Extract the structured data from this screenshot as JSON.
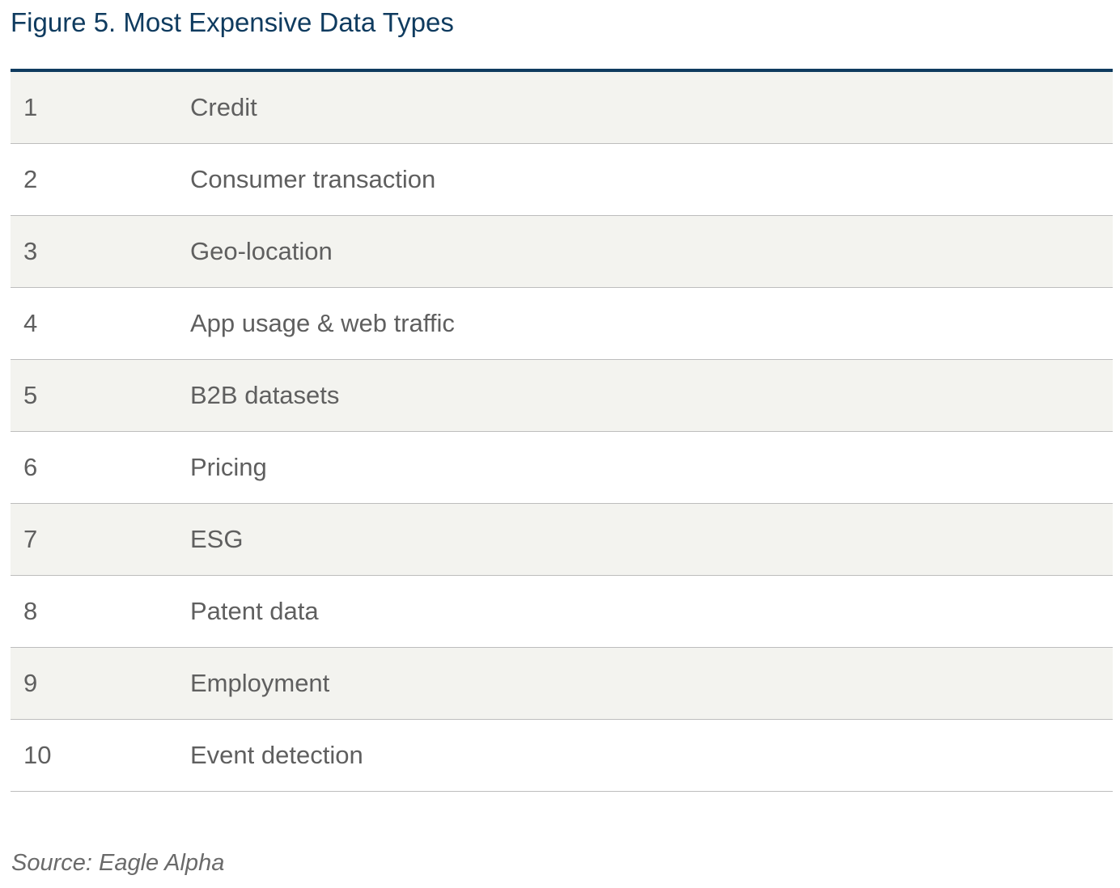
{
  "title": "Figure 5. Most Expensive Data Types",
  "rows": [
    {
      "rank": "1",
      "type": "Credit"
    },
    {
      "rank": "2",
      "type": "Consumer transaction"
    },
    {
      "rank": "3",
      "type": "Geo-location"
    },
    {
      "rank": "4",
      "type": "App usage & web traffic"
    },
    {
      "rank": "5",
      "type": "B2B datasets"
    },
    {
      "rank": "6",
      "type": "Pricing"
    },
    {
      "rank": "7",
      "type": "ESG"
    },
    {
      "rank": "8",
      "type": "Patent data"
    },
    {
      "rank": "9",
      "type": "Employment"
    },
    {
      "rank": "10",
      "type": "Event detection"
    }
  ],
  "source": "Source: Eagle Alpha",
  "colors": {
    "title": "#0f3b5f",
    "rule": "#0f3b5f",
    "row_shade": "#f3f3ef",
    "text": "#5f5f5f"
  }
}
